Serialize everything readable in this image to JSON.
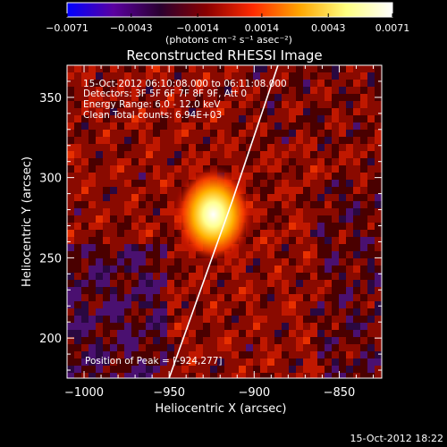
{
  "chart_data": {
    "type": "heatmap",
    "title": "Reconstructed RHESSI Image",
    "xlabel": "Heliocentric X (arcsec)",
    "ylabel": "Heliocentric Y (arcsec)",
    "xlim": [
      -1010,
      -825
    ],
    "ylim": [
      175,
      370
    ],
    "x_ticks": [
      -1000,
      -950,
      -900,
      -850
    ],
    "y_ticks": [
      200,
      250,
      300,
      350
    ],
    "x_tick_labels": [
      "−1000",
      "−950",
      "−900",
      "−850"
    ],
    "y_tick_labels": [
      "200",
      "250",
      "300",
      "350"
    ],
    "peak": {
      "x": -924,
      "y": 277
    },
    "limb_line": [
      {
        "x": -950,
        "y": 175
      },
      {
        "x": -913,
        "y": 285
      },
      {
        "x": -886,
        "y": 370
      }
    ],
    "colorbar": {
      "min": -0.0071,
      "max": 0.0071,
      "ticks": [
        -0.0071,
        -0.0043,
        -0.0014,
        0.0014,
        0.0043,
        0.0071
      ],
      "tick_labels": [
        "−0.0071",
        "−0.0043",
        "−0.0014",
        "0.0014",
        "0.0043",
        "0.0071"
      ],
      "units_label": "(photons cm⁻² s⁻¹ asec⁻²)",
      "colors": [
        "#0000ff",
        "#5a00a0",
        "#2a0030",
        "#8a0000",
        "#ff2a00",
        "#ffa500",
        "#ffff80",
        "#ffffff"
      ]
    },
    "annotations": {
      "line1": "15-Oct-2012 06:10:08.000 to 06:11:08.000",
      "line2": "Detectors: 3F 5F 6F 7F 8F 9F, Att 0",
      "line3": "Energy Range: 6.0 - 12.0 keV",
      "line4": "Clean    Total counts: 6.94E+03",
      "peak_label": "Position of Peak = [-924,277]"
    },
    "timestamp": "15-Oct-2012 18:22"
  }
}
